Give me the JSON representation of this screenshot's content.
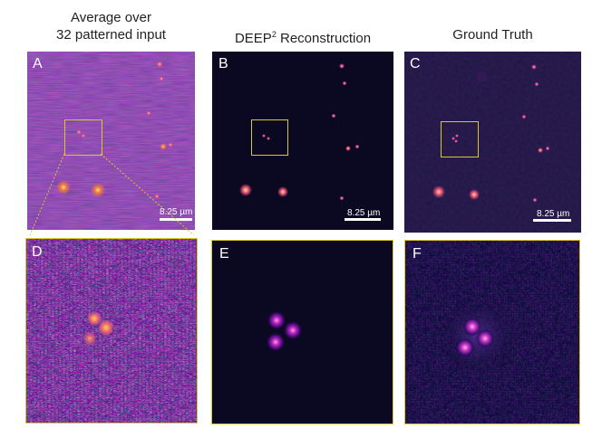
{
  "titles": {
    "col_a_line1": "Average over",
    "col_a_line2": "32 patterned input",
    "col_b_main": "DEEP",
    "col_b_sup": "2",
    "col_b_rest": " Reconstruction",
    "col_c": "Ground Truth"
  },
  "panels": {
    "a": "A",
    "b": "B",
    "c": "C",
    "d": "D",
    "e": "E",
    "f": "F"
  },
  "scalebar": {
    "label": "8.25 µm"
  },
  "colors": {
    "zoom_box": "#d8c82a",
    "colormap": "magma/plasma",
    "dark_bg": "#0b0822",
    "noisy_bg": "#5a2a7a"
  }
}
